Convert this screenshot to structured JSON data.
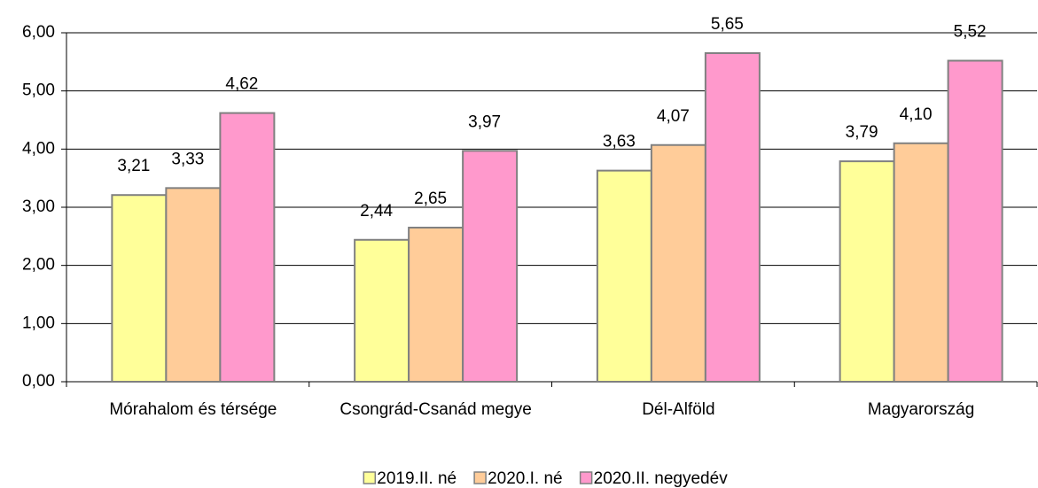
{
  "chart_data": {
    "type": "bar",
    "categories": [
      "Mórahalom és térsége",
      "Csongrád-Csanád megye",
      "Dél-Alföld",
      "Magyarország"
    ],
    "series": [
      {
        "name": "2019.II. né",
        "color": "#ffff99",
        "values": [
          3.21,
          2.44,
          3.63,
          3.79
        ],
        "value_labels": [
          "3,21",
          "2,44",
          "3,63",
          "3,79"
        ]
      },
      {
        "name": "2020.I. né",
        "color": "#ffcc99",
        "values": [
          3.33,
          2.65,
          4.07,
          4.1
        ],
        "value_labels": [
          "3,33",
          "2,65",
          "4,07",
          "4,10"
        ]
      },
      {
        "name": "2020.II. negyedév",
        "color": "#ff99cc",
        "values": [
          4.62,
          3.97,
          5.65,
          5.52
        ],
        "value_labels": [
          "4,62",
          "3,97",
          "5,65",
          "5,52"
        ]
      }
    ],
    "ylim": [
      0,
      6
    ],
    "yticks": [
      {
        "value": 0,
        "label": "0,00"
      },
      {
        "value": 1,
        "label": "1,00"
      },
      {
        "value": 2,
        "label": "2,00"
      },
      {
        "value": 3,
        "label": "3,00"
      },
      {
        "value": 4,
        "label": "4,00"
      },
      {
        "value": 5,
        "label": "5,00"
      },
      {
        "value": 6,
        "label": "6,00"
      }
    ],
    "grid": true,
    "legend": "bottom"
  }
}
